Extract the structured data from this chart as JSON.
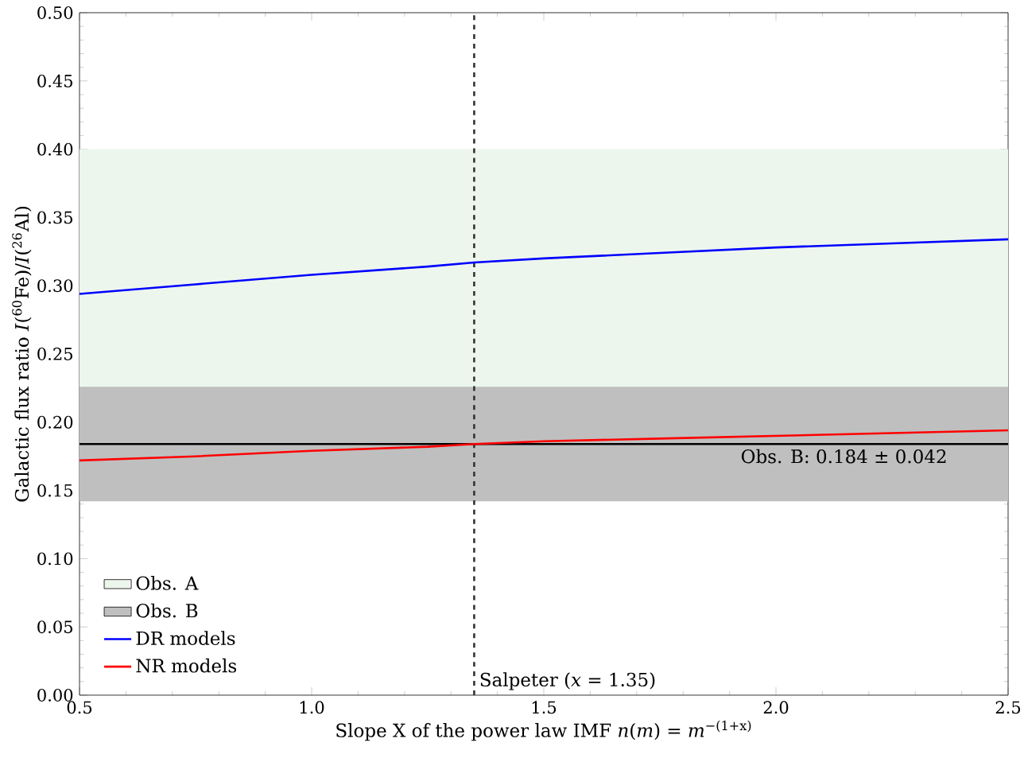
{
  "chart_data": {
    "type": "line",
    "xlabel": "Slope X of the power law IMF *n*(*m*) = *m*$^{−(1+x)}$",
    "ylabel": "Galactic flux ratio *I*($^{60}$Fe)/*I*($^{26}$Al)",
    "x": [
      0.5,
      0.75,
      1.0,
      1.25,
      1.35,
      1.5,
      1.75,
      2.0,
      2.25,
      2.5
    ],
    "series": [
      {
        "name": "DR models",
        "color": "#0000ff",
        "values": [
          0.294,
          0.301,
          0.308,
          0.314,
          0.317,
          0.32,
          0.324,
          0.328,
          0.331,
          0.334
        ]
      },
      {
        "name": "NR models",
        "color": "#ff0000",
        "values": [
          0.172,
          0.175,
          0.179,
          0.182,
          0.184,
          0.186,
          0.188,
          0.19,
          0.192,
          0.194
        ]
      }
    ],
    "bands": [
      {
        "axis": "y",
        "from": 0.2,
        "to": 0.4,
        "label": "Obs. A",
        "color": "#edf6ed"
      },
      {
        "axis": "y",
        "from": 0.142,
        "to": 0.226,
        "label": "Obs. B",
        "color": "#bfbfbf"
      }
    ],
    "ref_lines": [
      {
        "axis": "x",
        "value": 1.35,
        "label": "Salpeter (*x* = 1.35)",
        "color": "#333333",
        "line_style": "dashed"
      },
      {
        "axis": "y",
        "value": 0.184,
        "label": "Obs. B: 0.184 ± 0.042",
        "color": "#000000",
        "line_style": "solid"
      }
    ],
    "xlim": [
      0.5,
      2.5
    ],
    "ylim": [
      0.0,
      0.5
    ],
    "xticks": [
      {
        "value": 0.5,
        "label": "0.5"
      },
      {
        "value": 1.0,
        "label": "1.0"
      },
      {
        "value": 1.5,
        "label": "1.5"
      },
      {
        "value": 2.0,
        "label": "2.0"
      },
      {
        "value": 2.5,
        "label": "2.5"
      }
    ],
    "yticks": [
      {
        "value": 0.0,
        "label": "0.00"
      },
      {
        "value": 0.05,
        "label": "0.05"
      },
      {
        "value": 0.1,
        "label": "0.10"
      },
      {
        "value": 0.15,
        "label": "0.15"
      },
      {
        "value": 0.2,
        "label": "0.20"
      },
      {
        "value": 0.25,
        "label": "0.25"
      },
      {
        "value": 0.3,
        "label": "0.30"
      },
      {
        "value": 0.35,
        "label": "0.35"
      },
      {
        "value": 0.4,
        "label": "0.40"
      },
      {
        "value": 0.45,
        "label": "0.45"
      },
      {
        "value": 0.5,
        "label": "0.50"
      }
    ],
    "legend": "bottom left",
    "grid": false,
    "marker": "none",
    "line_style": "solid"
  }
}
